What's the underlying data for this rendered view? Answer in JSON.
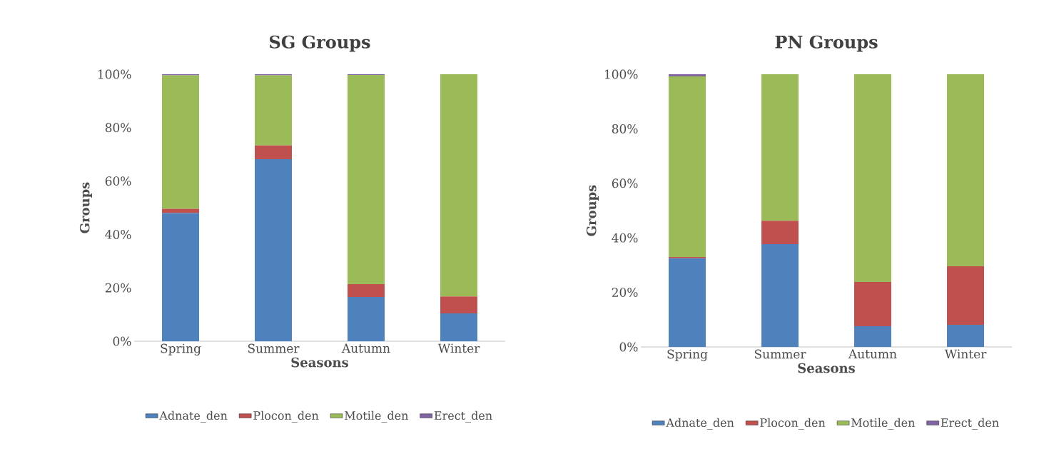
{
  "chart_data": [
    {
      "type": "bar",
      "stacked": true,
      "title": "SG Groups",
      "xlabel": "Seasons",
      "ylabel": "Groups",
      "categories": [
        "Spring",
        "Summer",
        "Autumn",
        "Winter"
      ],
      "series": [
        {
          "name": "Adnate_den",
          "color": "#4f81bd",
          "values": [
            48,
            68.2,
            16.6,
            10.4
          ]
        },
        {
          "name": "Plocon_den",
          "color": "#c0504d",
          "values": [
            1.6,
            5.1,
            4.8,
            6.4
          ]
        },
        {
          "name": "Motile_den",
          "color": "#9bbb59",
          "values": [
            50,
            26.3,
            78.3,
            83.2
          ]
        },
        {
          "name": "Erect_den",
          "color": "#8064a2",
          "values": [
            0.4,
            0.4,
            0.3,
            0
          ]
        }
      ],
      "ylim": [
        0,
        100
      ],
      "yticks": [
        {
          "value": 0,
          "label": "0%"
        },
        {
          "value": 20,
          "label": "20%"
        },
        {
          "value": 40,
          "label": "40%"
        },
        {
          "value": 60,
          "label": "60%"
        },
        {
          "value": 80,
          "label": "80%"
        },
        {
          "value": 100,
          "label": "100%"
        }
      ],
      "grid": false,
      "legend": "bottom"
    },
    {
      "type": "bar",
      "stacked": true,
      "title": "PN Groups",
      "xlabel": "Seasons",
      "ylabel": "Groups",
      "categories": [
        "Spring",
        "Summer",
        "Autumn",
        "Winter"
      ],
      "series": [
        {
          "name": "Adnate_den",
          "color": "#4f81bd",
          "values": [
            32.5,
            37.7,
            7.6,
            8.1
          ]
        },
        {
          "name": "Plocon_den",
          "color": "#c0504d",
          "values": [
            0.5,
            8.6,
            16.2,
            21.5
          ]
        },
        {
          "name": "Motile_den",
          "color": "#9bbb59",
          "values": [
            66.2,
            53.7,
            76.2,
            70.4
          ]
        },
        {
          "name": "Erect_den",
          "color": "#8064a2",
          "values": [
            0.8,
            0,
            0,
            0
          ]
        }
      ],
      "ylim": [
        0,
        100
      ],
      "yticks": [
        {
          "value": 0,
          "label": "0%"
        },
        {
          "value": 20,
          "label": "20%"
        },
        {
          "value": 40,
          "label": "40%"
        },
        {
          "value": 60,
          "label": "60%"
        },
        {
          "value": 80,
          "label": "80%"
        },
        {
          "value": 100,
          "label": "100%"
        }
      ],
      "grid": false,
      "legend": "bottom"
    }
  ]
}
